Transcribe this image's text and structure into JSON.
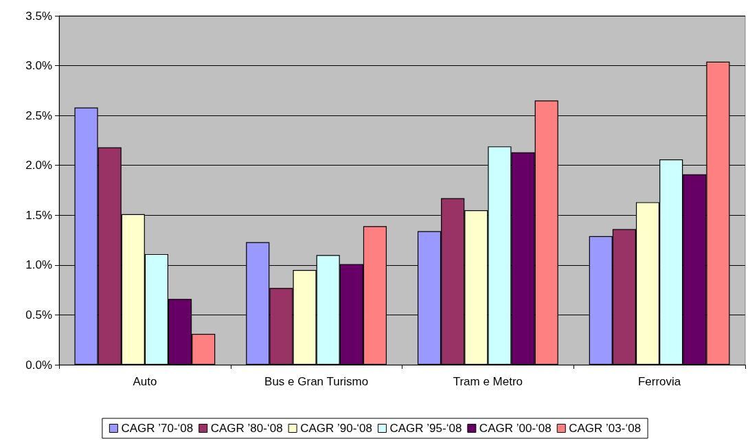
{
  "chart_data": {
    "type": "bar",
    "categories": [
      "Auto",
      "Bus e Gran Turismo",
      "Tram e Metro",
      "Ferrovia"
    ],
    "series": [
      {
        "name": "CAGR ’70-‘08",
        "color": "#9999ff",
        "values": [
          2.58,
          1.23,
          1.34,
          1.29
        ]
      },
      {
        "name": "CAGR ’80-‘08",
        "color": "#993366",
        "values": [
          2.18,
          0.77,
          1.67,
          1.36
        ]
      },
      {
        "name": "CAGR ’90-‘08",
        "color": "#ffffcc",
        "values": [
          1.51,
          0.95,
          1.55,
          1.63
        ]
      },
      {
        "name": "CAGR ’95-‘08",
        "color": "#ccffff",
        "values": [
          1.11,
          1.1,
          2.19,
          2.06
        ]
      },
      {
        "name": "CAGR ’00-‘08",
        "color": "#660066",
        "values": [
          0.66,
          1.01,
          2.13,
          1.91
        ]
      },
      {
        "name": "CAGR ’03-‘08",
        "color": "#ff8080",
        "values": [
          0.31,
          1.39,
          2.65,
          3.04
        ]
      }
    ],
    "ylim": [
      0,
      3.5
    ],
    "yticks": [
      {
        "value": 0,
        "label": "0.0%"
      },
      {
        "value": 0.5,
        "label": "0.5%"
      },
      {
        "value": 1,
        "label": "1.0%"
      },
      {
        "value": 1.5,
        "label": "1.5%"
      },
      {
        "value": 2,
        "label": "2.0%"
      },
      {
        "value": 2.5,
        "label": "2.5%"
      },
      {
        "value": 3,
        "label": "3.0%"
      },
      {
        "value": 3.5,
        "label": "3.5%"
      }
    ],
    "grid": "y",
    "legend": "bottom"
  }
}
